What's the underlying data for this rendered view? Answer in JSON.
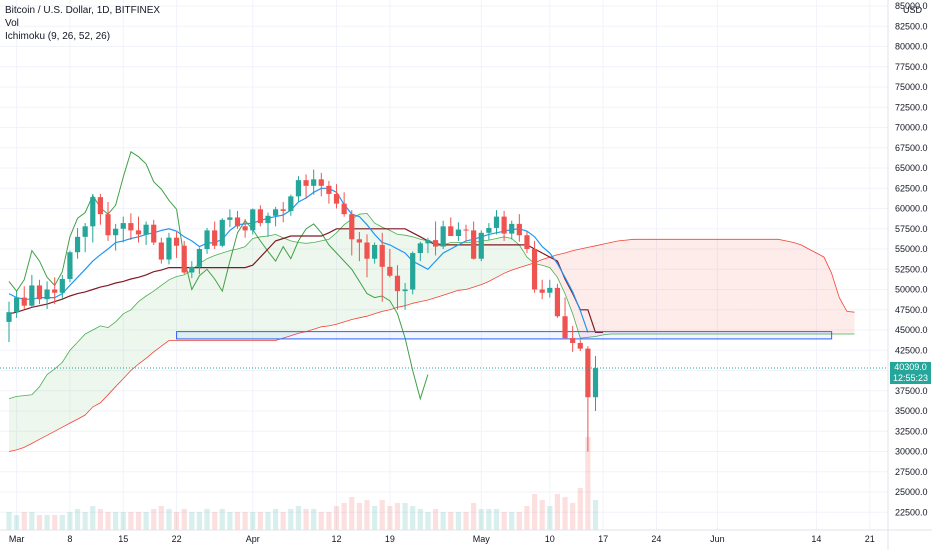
{
  "legend": {
    "title": "Bitcoin / U.S. Dollar, 1D, BITFINEX",
    "volume": "Vol",
    "ichimoku": "Ichimoku (9, 26, 52, 26)"
  },
  "currency": "USD",
  "last_price": "40309.0",
  "countdown": "12:55:23",
  "colors": {
    "up": "#26a69a",
    "down": "#ef5350",
    "conversion": "#2196f3",
    "base": "#801922",
    "lagging": "#43a047",
    "lead_a": "#4caf50",
    "lead_b": "#f44336",
    "zone": "#2962ff",
    "tag": "#26a69a"
  },
  "chart_data": {
    "type": "candlestick",
    "title": "Bitcoin / U.S. Dollar, 1D, BITFINEX",
    "ylim": [
      20000,
      85000
    ],
    "y_ticks": [
      22500,
      25000,
      27500,
      30000,
      32500,
      35000,
      37500,
      40000,
      42500,
      45000,
      47500,
      50000,
      52500,
      55000,
      57500,
      60000,
      62500,
      65000,
      67500,
      70000,
      72500,
      75000,
      77500,
      80000,
      82500,
      85000
    ],
    "y_tick_labels": [
      "22500.0",
      "25000.0",
      "27500.0",
      "30000.0",
      "32500.0",
      "35000.0",
      "37500.0",
      "40000.0",
      "42500.0",
      "45000.0",
      "47500.0",
      "50000.0",
      "52500.0",
      "55000.0",
      "57500.0",
      "60000.0",
      "62500.0",
      "65000.0",
      "67500.0",
      "70000.0",
      "72500.0",
      "75000.0",
      "77500.0",
      "80000.0",
      "82500.0",
      "85000.0"
    ],
    "x_axis": {
      "start_date": "2021-02-28",
      "end_date": "2021-06-22",
      "ticks": [
        {
          "date": "2021-03-01",
          "label": "Mar"
        },
        {
          "date": "2021-03-08",
          "label": "8"
        },
        {
          "date": "2021-03-15",
          "label": "15"
        },
        {
          "date": "2021-03-22",
          "label": "22"
        },
        {
          "date": "2021-04-01",
          "label": "Apr"
        },
        {
          "date": "2021-04-12",
          "label": "12"
        },
        {
          "date": "2021-04-19",
          "label": "19"
        },
        {
          "date": "2021-05-01",
          "label": "May"
        },
        {
          "date": "2021-05-10",
          "label": "10"
        },
        {
          "date": "2021-05-17",
          "label": "17"
        },
        {
          "date": "2021-05-24",
          "label": "24"
        },
        {
          "date": "2021-06-01",
          "label": "Jun"
        },
        {
          "date": "2021-06-14",
          "label": "14"
        },
        {
          "date": "2021-06-21",
          "label": "21"
        }
      ]
    },
    "candles_start": "2021-02-28",
    "candles": [
      [
        46000,
        48500,
        43500,
        47200
      ],
      [
        47200,
        49800,
        46500,
        49000
      ],
      [
        49000,
        50400,
        47600,
        48000
      ],
      [
        48000,
        51800,
        47800,
        50500
      ],
      [
        50500,
        51200,
        48200,
        48800
      ],
      [
        48800,
        51000,
        47600,
        50000
      ],
      [
        50000,
        51500,
        48200,
        49600
      ],
      [
        49600,
        51800,
        48900,
        51300
      ],
      [
        51300,
        54800,
        50900,
        54600
      ],
      [
        54600,
        57600,
        53800,
        56500
      ],
      [
        56500,
        58200,
        54600,
        57800
      ],
      [
        57800,
        61800,
        55800,
        61400
      ],
      [
        61400,
        61800,
        58000,
        59300
      ],
      [
        59300,
        60800,
        56000,
        56700
      ],
      [
        56700,
        58100,
        54800,
        57500
      ],
      [
        57500,
        59000,
        55800,
        58200
      ],
      [
        58200,
        59400,
        56100,
        57300
      ],
      [
        57300,
        59000,
        55800,
        56800
      ],
      [
        56800,
        58400,
        55500,
        58000
      ],
      [
        58000,
        58600,
        55500,
        55800
      ],
      [
        55800,
        56400,
        53200,
        53700
      ],
      [
        53700,
        57000,
        53100,
        56400
      ],
      [
        56400,
        57100,
        53900,
        55400
      ],
      [
        55400,
        56000,
        51900,
        52100
      ],
      [
        52100,
        53500,
        51400,
        52800
      ],
      [
        52800,
        55200,
        51900,
        55000
      ],
      [
        55000,
        57600,
        54400,
        57300
      ],
      [
        57300,
        58400,
        55000,
        55400
      ],
      [
        55400,
        58800,
        55200,
        58600
      ],
      [
        58600,
        59900,
        57700,
        58900
      ],
      [
        58900,
        59700,
        57500,
        57800
      ],
      [
        57800,
        58700,
        56400,
        57300
      ],
      [
        57300,
        60000,
        56800,
        59900
      ],
      [
        59900,
        60400,
        57800,
        58200
      ],
      [
        58200,
        59500,
        56500,
        59100
      ],
      [
        59100,
        60200,
        57800,
        59900
      ],
      [
        59900,
        60800,
        58300,
        59700
      ],
      [
        59700,
        61700,
        59100,
        61500
      ],
      [
        61500,
        64000,
        60800,
        63500
      ],
      [
        63500,
        64200,
        61200,
        62800
      ],
      [
        62800,
        64800,
        61700,
        63600
      ],
      [
        63600,
        64400,
        61500,
        62800
      ],
      [
        62800,
        63400,
        60600,
        61800
      ],
      [
        61800,
        63000,
        60000,
        60600
      ],
      [
        60600,
        62000,
        59000,
        59300
      ],
      [
        59300,
        59800,
        54200,
        56200
      ],
      [
        56200,
        57100,
        53500,
        55800
      ],
      [
        55800,
        56800,
        51500,
        53800
      ],
      [
        53800,
        55800,
        53200,
        55500
      ],
      [
        55500,
        57000,
        48500,
        52800
      ],
      [
        52800,
        55000,
        51500,
        51700
      ],
      [
        51700,
        53000,
        47500,
        49800
      ],
      [
        49800,
        50800,
        47500,
        50000
      ],
      [
        50000,
        54700,
        49400,
        54500
      ],
      [
        54500,
        55900,
        53500,
        55700
      ],
      [
        55700,
        56400,
        54500,
        56100
      ],
      [
        56100,
        58400,
        54200,
        55300
      ],
      [
        55300,
        58500,
        55000,
        57800
      ],
      [
        57800,
        58900,
        56700,
        56600
      ],
      [
        56600,
        58300,
        56000,
        57400
      ],
      [
        57400,
        58000,
        55900,
        57300
      ],
      [
        57300,
        58400,
        53700,
        53800
      ],
      [
        53800,
        57300,
        53500,
        57000
      ],
      [
        57000,
        58200,
        56100,
        57600
      ],
      [
        57600,
        59800,
        56800,
        59000
      ],
      [
        59000,
        59700,
        56000,
        56900
      ],
      [
        56900,
        58500,
        56200,
        58100
      ],
      [
        58100,
        59300,
        55900,
        56700
      ],
      [
        56700,
        57200,
        54500,
        55000
      ],
      [
        55000,
        56000,
        49600,
        50000
      ],
      [
        50000,
        51200,
        48800,
        49600
      ],
      [
        49600,
        51200,
        49000,
        50200
      ],
      [
        50200,
        50700,
        46500,
        46700
      ],
      [
        46700,
        49000,
        43900,
        44000
      ],
      [
        44000,
        45500,
        42300,
        43400
      ],
      [
        43400,
        43800,
        42400,
        42700
      ],
      [
        42700,
        43000,
        30000,
        36700
      ],
      [
        36700,
        41800,
        35000,
        40300
      ]
    ],
    "volume": [
      6,
      5,
      6,
      6,
      5,
      5,
      5,
      5,
      6,
      7,
      6,
      8,
      7,
      6,
      6,
      6,
      6,
      6,
      6,
      7,
      8,
      7,
      6,
      7,
      6,
      6,
      7,
      6,
      7,
      6,
      6,
      6,
      6,
      6,
      6,
      7,
      6,
      7,
      8,
      7,
      7,
      6,
      6,
      8,
      9,
      11,
      9,
      10,
      8,
      10,
      8,
      9,
      9,
      8,
      7,
      6,
      7,
      6,
      6,
      6,
      6,
      9,
      7,
      7,
      7,
      6,
      6,
      6,
      8,
      12,
      10,
      8,
      12,
      11,
      9,
      14,
      31,
      10
    ],
    "ichimoku": {
      "conversion": [
        {
          "date": "2021-02-28",
          "values": [
            49500,
            49000,
            48800,
            48800,
            49000,
            49000,
            49000,
            49500,
            50500,
            51500,
            52500,
            53500,
            54300,
            55000,
            55800,
            56000,
            56300,
            56500,
            56800,
            57000,
            57300,
            57500,
            57200,
            56500,
            56000,
            55300,
            55700,
            55800,
            56200,
            57300,
            58000,
            58100,
            58200,
            58500,
            58800,
            59000,
            59200,
            59800,
            60800,
            61300,
            62000,
            62500,
            62500,
            62000,
            60500,
            59300,
            59000,
            58000,
            56800,
            55800,
            55500,
            55000,
            54500,
            53500,
            53000,
            52500,
            53500,
            54500,
            55000,
            55500,
            56000,
            56200,
            56500,
            56800,
            57000,
            57200,
            57400,
            57500,
            57200,
            56500,
            55300,
            54500,
            53200,
            51500,
            49700,
            47400,
            44700
          ]
        }
      ],
      "base": [
        {
          "date": "2021-02-28",
          "values": [
            47000,
            47200,
            47500,
            47800,
            48000,
            48200,
            48500,
            48800,
            49200,
            49500,
            49700,
            50000,
            50300,
            50500,
            50800,
            51000,
            51300,
            51500,
            51800,
            52200,
            52400,
            52700,
            52700,
            52700,
            52700,
            52700,
            52700,
            52700,
            52700,
            52700,
            52700,
            52700,
            53000,
            54000,
            55000,
            56000,
            56300,
            56600,
            56600,
            56600,
            56600,
            56600,
            57000,
            57500,
            57500,
            57500,
            57500,
            57500,
            57500,
            57500,
            57500,
            57500,
            57500,
            57000,
            56500,
            56000,
            55500,
            55500,
            55500,
            55500,
            55500,
            55500,
            55500,
            55500,
            55500,
            55500,
            55500,
            55500,
            55500,
            55000,
            54500,
            54000,
            53500,
            51300,
            49500,
            47500,
            47500,
            44700,
            44700
          ]
        }
      ],
      "lagging": [
        {
          "date": "2021-02-28",
          "values": [
            51000,
            49800,
            51200,
            54800,
            53500,
            51500,
            50500,
            52200,
            56500,
            58800,
            59500,
            61600,
            60100,
            59300,
            60400,
            63900,
            67000,
            66400,
            65500,
            63300,
            62400,
            61000,
            59900,
            53800,
            50000,
            51700,
            52500,
            51300,
            49800,
            53500,
            57000,
            58500,
            57400,
            56000,
            54700,
            53500,
            55300,
            53800,
            56000,
            57500,
            58100,
            57000,
            55500,
            54500,
            53500,
            52500,
            51000,
            49500,
            49000,
            49200,
            48600,
            47000,
            44000,
            40000,
            36500,
            39500
          ]
        }
      ],
      "lead_a_start": "2021-02-28",
      "lead_a": [
        36500,
        36800,
        36900,
        37000,
        38000,
        39500,
        40200,
        41000,
        42500,
        43500,
        44500,
        45000,
        45500,
        45300,
        46000,
        47000,
        47500,
        48500,
        49200,
        49800,
        50500,
        51200,
        51600,
        51800,
        52400,
        53200,
        53800,
        54200,
        54500,
        54800,
        55000,
        55300,
        56300,
        56500,
        56600,
        56800,
        56400,
        56000,
        55800,
        55700,
        55800,
        56000,
        56200,
        57000,
        58000,
        58700,
        59300,
        59400,
        58200,
        57700,
        57300,
        56800,
        56700,
        56500,
        56200,
        56000,
        55800,
        55500,
        55800,
        55800,
        55800,
        55800,
        56000,
        56100,
        56300,
        56500,
        56300,
        55500,
        54000,
        53200,
        53000,
        52700,
        51500,
        49500,
        47000,
        44000,
        44100,
        44200,
        44400,
        44500,
        44500,
        44500,
        44500,
        44500,
        44500,
        44500,
        44500,
        44500,
        44500,
        44500,
        44500,
        44500,
        44500,
        44500,
        44500,
        44500,
        44500,
        44500,
        44500,
        44500,
        44500,
        44500,
        44500,
        44500,
        44500,
        44500,
        44500,
        44500,
        44500,
        44500,
        44500,
        44500
      ],
      "lead_b": [
        30000,
        30200,
        30500,
        31000,
        31500,
        32000,
        32500,
        33000,
        33500,
        34000,
        34500,
        35500,
        36000,
        37000,
        38000,
        39000,
        40000,
        40800,
        41500,
        42300,
        43000,
        43700,
        43700,
        43700,
        43700,
        43700,
        43700,
        43700,
        43700,
        43700,
        43700,
        43700,
        43700,
        43700,
        43700,
        43700,
        44000,
        44300,
        44600,
        44800,
        45100,
        45400,
        45500,
        45700,
        46000,
        46300,
        46500,
        46700,
        47000,
        47300,
        47500,
        47800,
        48000,
        48300,
        48500,
        48700,
        49000,
        49300,
        49600,
        49900,
        50000,
        50300,
        50600,
        51000,
        51500,
        52000,
        52400,
        52700,
        53000,
        53300,
        53700,
        54000,
        54300,
        54500,
        54800,
        55000,
        55200,
        55400,
        55600,
        55800,
        56000,
        56100,
        56200,
        56200,
        56200,
        56200,
        56200,
        56200,
        56200,
        56200,
        56200,
        56200,
        56200,
        56200,
        56200,
        56200,
        56200,
        56200,
        56200,
        56200,
        56200,
        56200,
        56000,
        55800,
        55500,
        55000,
        54500,
        54000,
        52000,
        49000,
        47300,
        47200
      ]
    },
    "zone": {
      "from_date": "2021-03-22",
      "to_date": "2021-06-16",
      "low": 43900,
      "high": 44800
    },
    "last_price": 40309.0
  }
}
